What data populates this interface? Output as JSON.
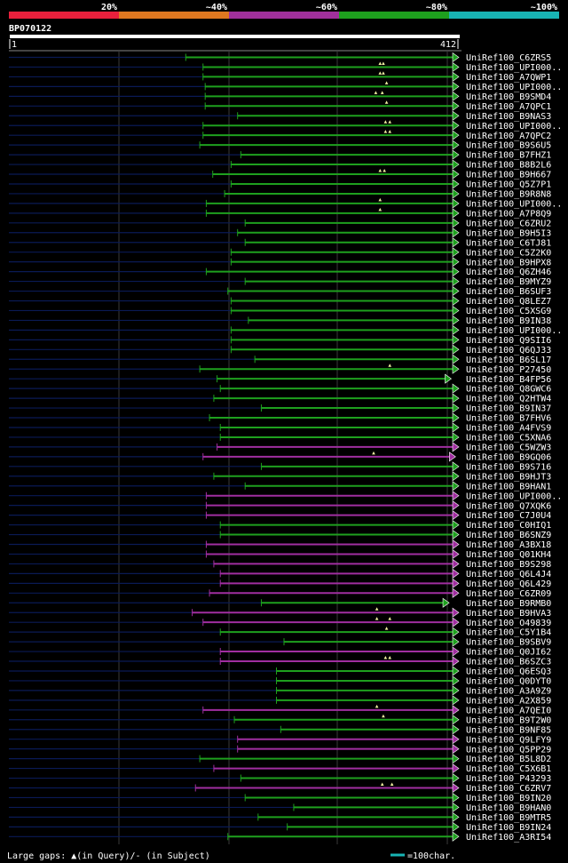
{
  "title": "BP070122",
  "legend": {
    "bands": [
      {
        "label": "20%",
        "color": "#e8203c"
      },
      {
        "label": "~40%",
        "color": "#e07820"
      },
      {
        "label": "~60%",
        "color": "#a0309c"
      },
      {
        "label": "~80%",
        "color": "#1ea01e"
      },
      {
        "label": "~100%",
        "color": "#18b4b4"
      }
    ]
  },
  "colors": {
    "green": "#1ea01e",
    "purple": "#a02ea0",
    "query_line": "#0a1a55",
    "grid": "#3a3a3a",
    "gap_marker": "#f0f0a0"
  },
  "footer": {
    "gaps_text": "Large gaps: ▲(in Query)/- (in Subject)",
    "scale_text": "=100char.",
    "scale_color": "#18b4b4"
  },
  "chart_data": {
    "type": "alignment",
    "query_start": 1,
    "query_end": 412,
    "start_label": "1",
    "end_label": "412",
    "hits": [
      {
        "name": "UniRef100_C6ZRS5",
        "start": 164,
        "end": 412,
        "color": "green"
      },
      {
        "name": "UniRef100_UPI000..",
        "start": 180,
        "end": 412,
        "color": "green",
        "gaps": [
          344,
          347
        ]
      },
      {
        "name": "UniRef100_A7QWP1",
        "start": 180,
        "end": 412,
        "color": "green",
        "gaps": [
          344,
          347
        ]
      },
      {
        "name": "UniRef100_UPI000..",
        "start": 182,
        "end": 412,
        "color": "green",
        "gaps": [
          350
        ]
      },
      {
        "name": "UniRef100_B9SMD4",
        "start": 182,
        "end": 412,
        "color": "green",
        "gaps": [
          340,
          346
        ]
      },
      {
        "name": "UniRef100_A7QPC1",
        "start": 182,
        "end": 412,
        "color": "green",
        "gaps": [
          350
        ]
      },
      {
        "name": "UniRef100_B9NAS3",
        "start": 212,
        "end": 412,
        "color": "green"
      },
      {
        "name": "UniRef100_UPI000..",
        "start": 180,
        "end": 412,
        "color": "green",
        "gaps": [
          349,
          353
        ]
      },
      {
        "name": "UniRef100_A7QPC2",
        "start": 180,
        "end": 412,
        "color": "green",
        "gaps": [
          349,
          353
        ]
      },
      {
        "name": "UniRef100_B9S6U5",
        "start": 177,
        "end": 412,
        "color": "green"
      },
      {
        "name": "UniRef100_B7FHZ1",
        "start": 215,
        "end": 412,
        "color": "green"
      },
      {
        "name": "UniRef100_B8B2L6",
        "start": 206,
        "end": 412,
        "color": "green"
      },
      {
        "name": "UniRef100_B9H667",
        "start": 189,
        "end": 412,
        "color": "green",
        "gaps": [
          344,
          348
        ]
      },
      {
        "name": "UniRef100_Q5Z7P1",
        "start": 206,
        "end": 412,
        "color": "green"
      },
      {
        "name": "UniRef100_B9R8N8",
        "start": 200,
        "end": 412,
        "color": "green"
      },
      {
        "name": "UniRef100_UPI000..",
        "start": 183,
        "end": 412,
        "color": "green",
        "gaps": [
          344
        ]
      },
      {
        "name": "UniRef100_A7P8Q9",
        "start": 183,
        "end": 412,
        "color": "green",
        "gaps": [
          344
        ]
      },
      {
        "name": "UniRef100_C6ZRU2",
        "start": 219,
        "end": 412,
        "color": "green"
      },
      {
        "name": "UniRef100_B9H5I3",
        "start": 212,
        "end": 412,
        "color": "green"
      },
      {
        "name": "UniRef100_C6TJ81",
        "start": 219,
        "end": 412,
        "color": "green"
      },
      {
        "name": "UniRef100_C5Z2K0",
        "start": 206,
        "end": 412,
        "color": "green"
      },
      {
        "name": "UniRef100_B9HPX8",
        "start": 206,
        "end": 412,
        "color": "green"
      },
      {
        "name": "UniRef100_Q6ZH46",
        "start": 183,
        "end": 412,
        "color": "green"
      },
      {
        "name": "UniRef100_B9MYZ9",
        "start": 219,
        "end": 412,
        "color": "green"
      },
      {
        "name": "UniRef100_B6SUF3",
        "start": 203,
        "end": 412,
        "color": "green"
      },
      {
        "name": "UniRef100_Q8LEZ7",
        "start": 206,
        "end": 412,
        "color": "green"
      },
      {
        "name": "UniRef100_C5XSG9",
        "start": 206,
        "end": 412,
        "color": "green"
      },
      {
        "name": "UniRef100_B9IN38",
        "start": 222,
        "end": 412,
        "color": "green"
      },
      {
        "name": "UniRef100_UPI000..",
        "start": 206,
        "end": 412,
        "color": "green"
      },
      {
        "name": "UniRef100_Q9SII6",
        "start": 206,
        "end": 412,
        "color": "green"
      },
      {
        "name": "UniRef100_Q6QJ33",
        "start": 206,
        "end": 412,
        "color": "green"
      },
      {
        "name": "UniRef100_B6SL17",
        "start": 228,
        "end": 412,
        "color": "green"
      },
      {
        "name": "UniRef100_P27450",
        "start": 177,
        "end": 412,
        "color": "green",
        "gaps": [
          353
        ]
      },
      {
        "name": "UniRef100_B4FP56",
        "start": 193,
        "end": 405,
        "color": "green"
      },
      {
        "name": "UniRef100_Q8GWC6",
        "start": 196,
        "end": 412,
        "color": "green"
      },
      {
        "name": "UniRef100_Q2HTW4",
        "start": 190,
        "end": 412,
        "color": "green"
      },
      {
        "name": "UniRef100_B9IN37",
        "start": 234,
        "end": 412,
        "color": "green"
      },
      {
        "name": "UniRef100_B7FHV6",
        "start": 186,
        "end": 412,
        "color": "green"
      },
      {
        "name": "UniRef100_A4FVS9",
        "start": 196,
        "end": 412,
        "color": "green"
      },
      {
        "name": "UniRef100_C5XNA6",
        "start": 196,
        "end": 412,
        "color": "green"
      },
      {
        "name": "UniRef100_C5WZW3",
        "start": 193,
        "end": 412,
        "color": "purple"
      },
      {
        "name": "UniRef100_B9GQ06",
        "start": 180,
        "end": 409,
        "color": "purple",
        "gaps": [
          338
        ]
      },
      {
        "name": "UniRef100_B9S716",
        "start": 234,
        "end": 412,
        "color": "green"
      },
      {
        "name": "UniRef100_B9HJT3",
        "start": 190,
        "end": 412,
        "color": "green"
      },
      {
        "name": "UniRef100_B9HAN1",
        "start": 219,
        "end": 412,
        "color": "green"
      },
      {
        "name": "UniRef100_UPI000..",
        "start": 183,
        "end": 412,
        "color": "purple"
      },
      {
        "name": "UniRef100_Q7XQK6",
        "start": 183,
        "end": 412,
        "color": "purple"
      },
      {
        "name": "UniRef100_C7J0U4",
        "start": 183,
        "end": 412,
        "color": "purple"
      },
      {
        "name": "UniRef100_C0HIQ1",
        "start": 196,
        "end": 412,
        "color": "green"
      },
      {
        "name": "UniRef100_B6SNZ9",
        "start": 196,
        "end": 412,
        "color": "green"
      },
      {
        "name": "UniRef100_A3BX18",
        "start": 183,
        "end": 412,
        "color": "purple"
      },
      {
        "name": "UniRef100_Q01KH4",
        "start": 183,
        "end": 412,
        "color": "purple"
      },
      {
        "name": "UniRef100_B9S298",
        "start": 190,
        "end": 412,
        "color": "purple"
      },
      {
        "name": "UniRef100_Q6L4J4",
        "start": 196,
        "end": 412,
        "color": "purple"
      },
      {
        "name": "UniRef100_Q6L429",
        "start": 196,
        "end": 412,
        "color": "purple"
      },
      {
        "name": "UniRef100_C6ZR09",
        "start": 186,
        "end": 412,
        "color": "purple"
      },
      {
        "name": "UniRef100_B9RMB0",
        "start": 234,
        "end": 403,
        "color": "green"
      },
      {
        "name": "UniRef100_B9HVA3",
        "start": 170,
        "end": 412,
        "color": "purple",
        "gaps": [
          341
        ]
      },
      {
        "name": "UniRef100_O49839",
        "start": 180,
        "end": 412,
        "color": "purple",
        "gaps": [
          341,
          353
        ]
      },
      {
        "name": "UniRef100_C5Y1B4",
        "start": 196,
        "end": 412,
        "color": "green",
        "gaps": [
          350
        ]
      },
      {
        "name": "UniRef100_B9SBV9",
        "start": 255,
        "end": 412,
        "color": "green"
      },
      {
        "name": "UniRef100_Q0JI62",
        "start": 196,
        "end": 412,
        "color": "purple"
      },
      {
        "name": "UniRef100_B6SZC3",
        "start": 196,
        "end": 412,
        "color": "purple",
        "gaps": [
          349,
          353
        ]
      },
      {
        "name": "UniRef100_Q6ESQ3",
        "start": 248,
        "end": 412,
        "color": "green"
      },
      {
        "name": "UniRef100_Q0DYT0",
        "start": 248,
        "end": 412,
        "color": "green"
      },
      {
        "name": "UniRef100_A3A9Z9",
        "start": 248,
        "end": 412,
        "color": "green"
      },
      {
        "name": "UniRef100_A2X859",
        "start": 248,
        "end": 412,
        "color": "green"
      },
      {
        "name": "UniRef100_A7QEI0",
        "start": 180,
        "end": 412,
        "color": "purple",
        "gaps": [
          341
        ]
      },
      {
        "name": "UniRef100_B9T2W0",
        "start": 209,
        "end": 412,
        "color": "green",
        "gaps": [
          347
        ]
      },
      {
        "name": "UniRef100_B9NF85",
        "start": 252,
        "end": 412,
        "color": "green"
      },
      {
        "name": "UniRef100_Q9LFY9",
        "start": 212,
        "end": 412,
        "color": "purple"
      },
      {
        "name": "UniRef100_Q5PP29",
        "start": 212,
        "end": 412,
        "color": "purple"
      },
      {
        "name": "UniRef100_B5L8D2",
        "start": 177,
        "end": 412,
        "color": "green"
      },
      {
        "name": "UniRef100_C5X6B1",
        "start": 190,
        "end": 412,
        "color": "purple"
      },
      {
        "name": "UniRef100_P43293",
        "start": 215,
        "end": 412,
        "color": "green"
      },
      {
        "name": "UniRef100_C6ZRV7",
        "start": 173,
        "end": 412,
        "color": "purple",
        "gaps": [
          346,
          355
        ]
      },
      {
        "name": "UniRef100_B9IN20",
        "start": 219,
        "end": 412,
        "color": "green"
      },
      {
        "name": "UniRef100_B9HAN0",
        "start": 264,
        "end": 412,
        "color": "green"
      },
      {
        "name": "UniRef100_B9MTR5",
        "start": 231,
        "end": 412,
        "color": "green"
      },
      {
        "name": "UniRef100_B9IN24",
        "start": 258,
        "end": 412,
        "color": "green"
      },
      {
        "name": "UniRef100_A3RI54",
        "start": 203,
        "end": 412,
        "color": "green"
      }
    ]
  }
}
